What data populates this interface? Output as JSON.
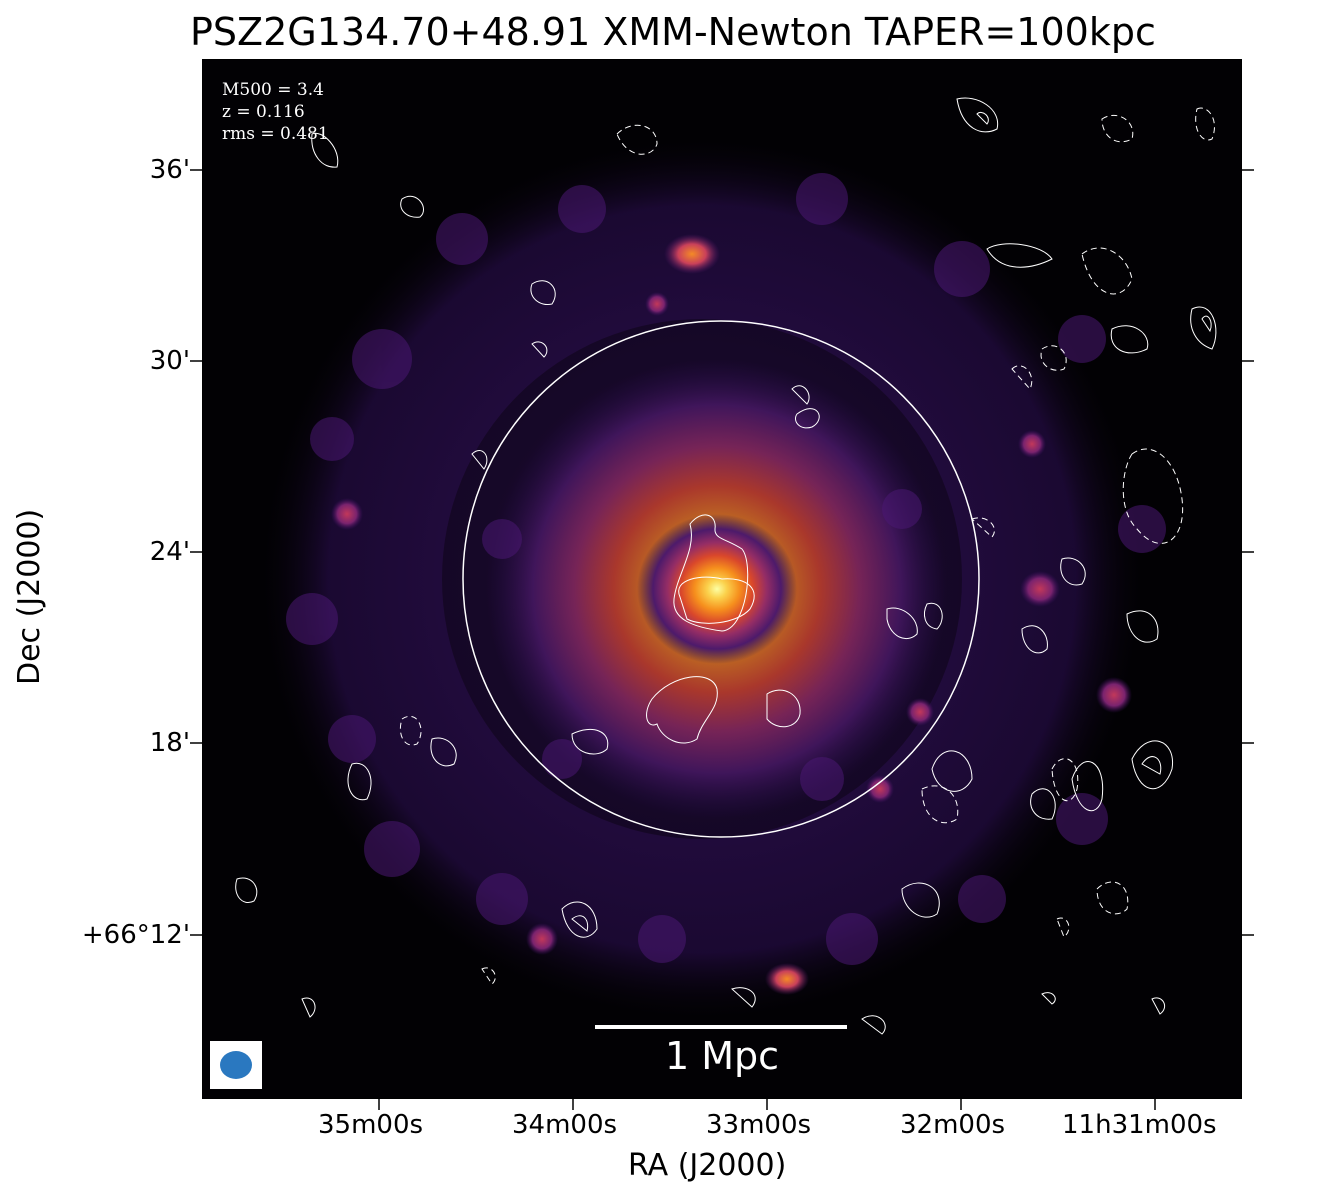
{
  "title": "PSZ2G134.70+48.91 XMM-Newton TAPER=100kpc",
  "info": {
    "m500": "M500 = 3.4",
    "z": "z = 0.116",
    "rms": "rms = 0.481"
  },
  "scale_bar": {
    "label": "1 Mpc"
  },
  "axes": {
    "xlabel": "RA (J2000)",
    "ylabel": "Dec (J2000)",
    "yticks": [
      "36'",
      "30'",
      "24'",
      "18'",
      "+66°12'"
    ],
    "xticks": [
      "35m00s",
      "34m00s",
      "33m00s",
      "32m00s",
      "11h31m00s"
    ]
  },
  "colors": {
    "background": "#020104",
    "contours": "#ffffff",
    "beam": "#2a78c0",
    "colormap": "inferno"
  }
}
